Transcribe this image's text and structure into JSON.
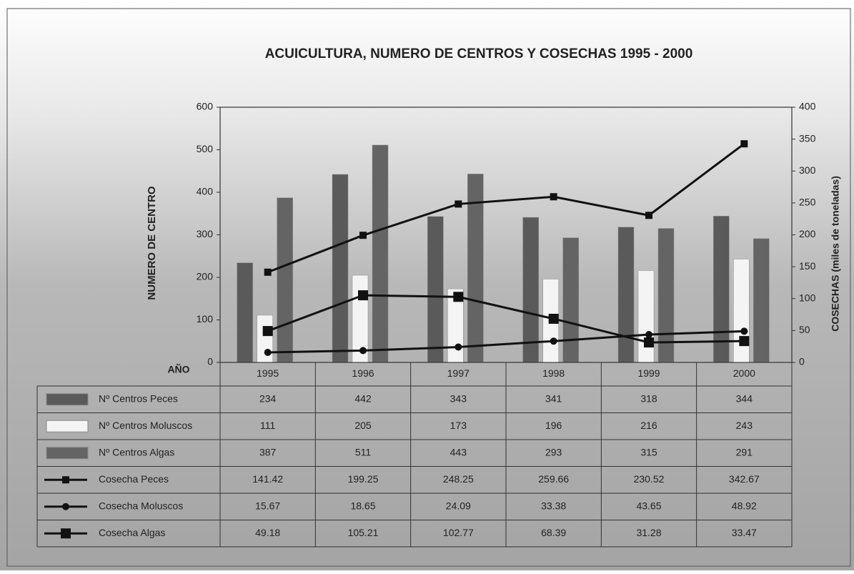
{
  "chart_data": {
    "type": "bar",
    "title": "ACUICULTURA, NUMERO DE CENTROS Y COSECHAS 1995 - 2000",
    "y_label": "NUMERO DE CENTRO",
    "y2_label": "COSECHAS (miles de toneladas)",
    "x_label": "AÑO",
    "categories": [
      "1995",
      "1996",
      "1997",
      "1998",
      "1999",
      "2000"
    ],
    "ylim": [
      0,
      600
    ],
    "yticks": [
      0,
      100,
      200,
      300,
      400,
      500,
      600
    ],
    "y2lim": [
      0,
      400
    ],
    "y2ticks": [
      0,
      50,
      100,
      150,
      200,
      250,
      300,
      350,
      400
    ],
    "series": [
      {
        "name": "Nº Centros Peces",
        "type": "bar",
        "color": "#5a5a5a",
        "values": [
          234,
          442,
          343,
          341,
          318,
          344
        ]
      },
      {
        "name": "Nº Centros Moluscos",
        "type": "bar",
        "color": "#f4f4f4",
        "values": [
          111,
          205,
          173,
          196,
          216,
          243
        ]
      },
      {
        "name": "Nº Centros Algas",
        "type": "bar",
        "color": "#646464",
        "values": [
          387,
          511,
          443,
          293,
          315,
          291
        ]
      },
      {
        "name": "Cosecha Peces",
        "type": "line",
        "axis": "y2",
        "marker": "square",
        "color": "#111111",
        "values": [
          141.42,
          199.25,
          248.25,
          259.66,
          230.52,
          342.67
        ]
      },
      {
        "name": "Cosecha Moluscos",
        "type": "line",
        "axis": "y2",
        "marker": "circle",
        "color": "#111111",
        "values": [
          15.67,
          18.65,
          24.09,
          33.38,
          43.65,
          48.92
        ]
      },
      {
        "name": "Cosecha Algas",
        "type": "line",
        "axis": "y2",
        "marker": "bigsquare",
        "color": "#111111",
        "values": [
          49.18,
          105.21,
          102.77,
          68.39,
          31.28,
          33.47
        ]
      }
    ]
  }
}
